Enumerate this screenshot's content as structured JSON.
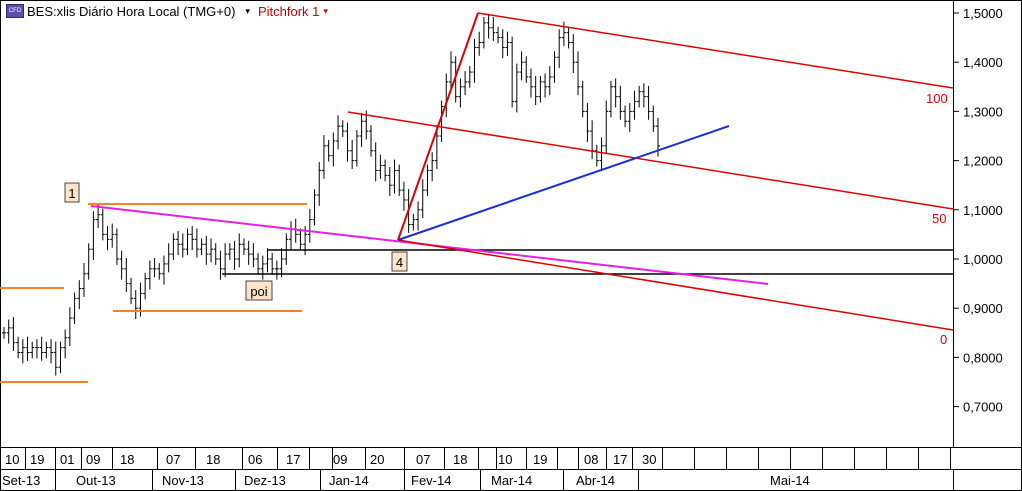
{
  "header": {
    "icon_label": "CFD",
    "symbol_title": "BES:xlis Diário Hora Local (TMG+0)",
    "dropdown_glyph": "▾",
    "study_title": "Pitchfork 1",
    "study_dropdown_glyph": "▾"
  },
  "chart_data": {
    "type": "candlestick-bar",
    "price_axis": {
      "labels": [
        "1,5000",
        "1,4000",
        "1,3000",
        "1,2000",
        "1,1000",
        "1,0000",
        "0,9000",
        "0,8000",
        "0,7000"
      ],
      "values": [
        1.5,
        1.4,
        1.3,
        1.2,
        1.1,
        1.0,
        0.9,
        0.8,
        0.7
      ],
      "ylim": [
        0.63,
        1.51
      ]
    },
    "time_axis": {
      "day_ticks": [
        "10",
        "19",
        "01",
        "09",
        "18",
        "07",
        "18",
        "06",
        "17",
        "09",
        "20",
        "07",
        "18",
        "10",
        "19",
        "08",
        "17",
        "30"
      ],
      "month_labels": [
        "Set-13",
        "Out-13",
        "Nov-13",
        "Dez-13",
        "Jan-14",
        "Fev-14",
        "Mar-14",
        "Abr-14",
        "Mai-14"
      ]
    },
    "annotations": {
      "pitchfork_levels": [
        "100",
        "50",
        "0"
      ],
      "markers": [
        "1",
        "4",
        "poi"
      ]
    },
    "series": [
      {
        "values": [
          0.85,
          0.86,
          0.83,
          0.81,
          0.82,
          0.81,
          0.82,
          0.82,
          0.81,
          0.82,
          0.81,
          0.78,
          0.82,
          0.84,
          0.88,
          0.92,
          0.94,
          0.97,
          1.02,
          1.08,
          1.09,
          1.05,
          1.04,
          1.05,
          1.0,
          0.98,
          0.95,
          0.92,
          0.9,
          0.93,
          0.96,
          0.98,
          0.98,
          0.97,
          0.99,
          1.01,
          1.04,
          1.03,
          1.02,
          1.05,
          1.04,
          1.02,
          1.03,
          1.01,
          1.02,
          1.0,
          0.98,
          1.01,
          1.02,
          1.0,
          1.03,
          1.02,
          1.01,
          1.0,
          0.98,
          0.99,
          1.0,
          0.98,
          0.98,
          1.0,
          1.04,
          1.06,
          1.05,
          1.03,
          1.05,
          1.08,
          1.13,
          1.18,
          1.23,
          1.21,
          1.24,
          1.27,
          1.26,
          1.22,
          1.2,
          1.25,
          1.28,
          1.26,
          1.22,
          1.18,
          1.19,
          1.17,
          1.15,
          1.18,
          1.14,
          1.12,
          1.07,
          1.08,
          1.1,
          1.14,
          1.18,
          1.2,
          1.25,
          1.31,
          1.36,
          1.4,
          1.33,
          1.35,
          1.36,
          1.38,
          1.43,
          1.44,
          1.48,
          1.47,
          1.46,
          1.45,
          1.43,
          1.44,
          1.32,
          1.38,
          1.4,
          1.37,
          1.35,
          1.33,
          1.36,
          1.35,
          1.37,
          1.41,
          1.45,
          1.46,
          1.44,
          1.4,
          1.35,
          1.3,
          1.26,
          1.22,
          1.2,
          1.23,
          1.3,
          1.35,
          1.33,
          1.3,
          1.28,
          1.3,
          1.32,
          1.34,
          1.33,
          1.3,
          1.27,
          1.23
        ]
      }
    ]
  }
}
